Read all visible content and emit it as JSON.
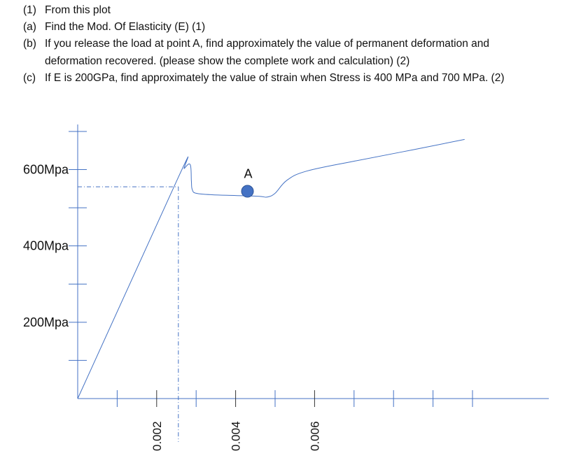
{
  "questions": [
    {
      "num": "(1)",
      "text": "From this plot"
    },
    {
      "num": "(a)",
      "text": "Find the Mod. Of Elasticity (E) (1)"
    },
    {
      "num": "(b)",
      "text": "If you release the load at point A, find approximately the value of permanent deformation and"
    },
    {
      "num": "",
      "text": "deformation recovered. (please show the complete work and calculation) (2)"
    },
    {
      "num": "(c)",
      "text": "If E is 200GPa, find approximately the value of strain when Stress is 400 MPa and 700 MPa. (2)"
    }
  ],
  "chart_data": {
    "type": "line",
    "title": "",
    "xlabel": "",
    "ylabel": "",
    "xlim": [
      0,
      0.0116
    ],
    "ylim": [
      0,
      720
    ],
    "y_tick_labels": [
      {
        "value": 200,
        "label": "200Mpa"
      },
      {
        "value": 400,
        "label": "400Mpa"
      },
      {
        "value": 600,
        "label": "600Mpa"
      }
    ],
    "y_minor_ticks": [
      100,
      300,
      500,
      700
    ],
    "x_tick_labels": [
      {
        "value": 0.002,
        "label": "0.002"
      },
      {
        "value": 0.004,
        "label": "0.004"
      },
      {
        "value": 0.006,
        "label": "0.006"
      }
    ],
    "x_minor_ticks": [
      0.001,
      0.003,
      0.005,
      0.007,
      0.008,
      0.009,
      0.01
    ],
    "series": [
      {
        "color": "#4472c4",
        "points": [
          [
            0,
            0
          ],
          [
            0.00255,
            580
          ],
          [
            0.0027,
            603
          ],
          [
            0.00285,
            613
          ],
          [
            0.00288,
            570
          ],
          [
            0.0029,
            548
          ],
          [
            0.003,
            538
          ],
          [
            0.0034,
            534
          ],
          [
            0.004,
            532
          ],
          [
            0.0046,
            530
          ],
          [
            0.0048,
            528
          ],
          [
            0.005,
            538
          ],
          [
            0.0053,
            572
          ],
          [
            0.0058,
            596
          ],
          [
            0.007,
            622
          ],
          [
            0.0085,
            652
          ],
          [
            0.0098,
            679
          ]
        ]
      }
    ],
    "reference_lines": {
      "yield_stress": 555,
      "yield_strain": 0.00255
    },
    "annotations": [
      {
        "label": "A",
        "x": 0.0043,
        "y": 534,
        "marker_color": "#4472c4"
      }
    ]
  }
}
